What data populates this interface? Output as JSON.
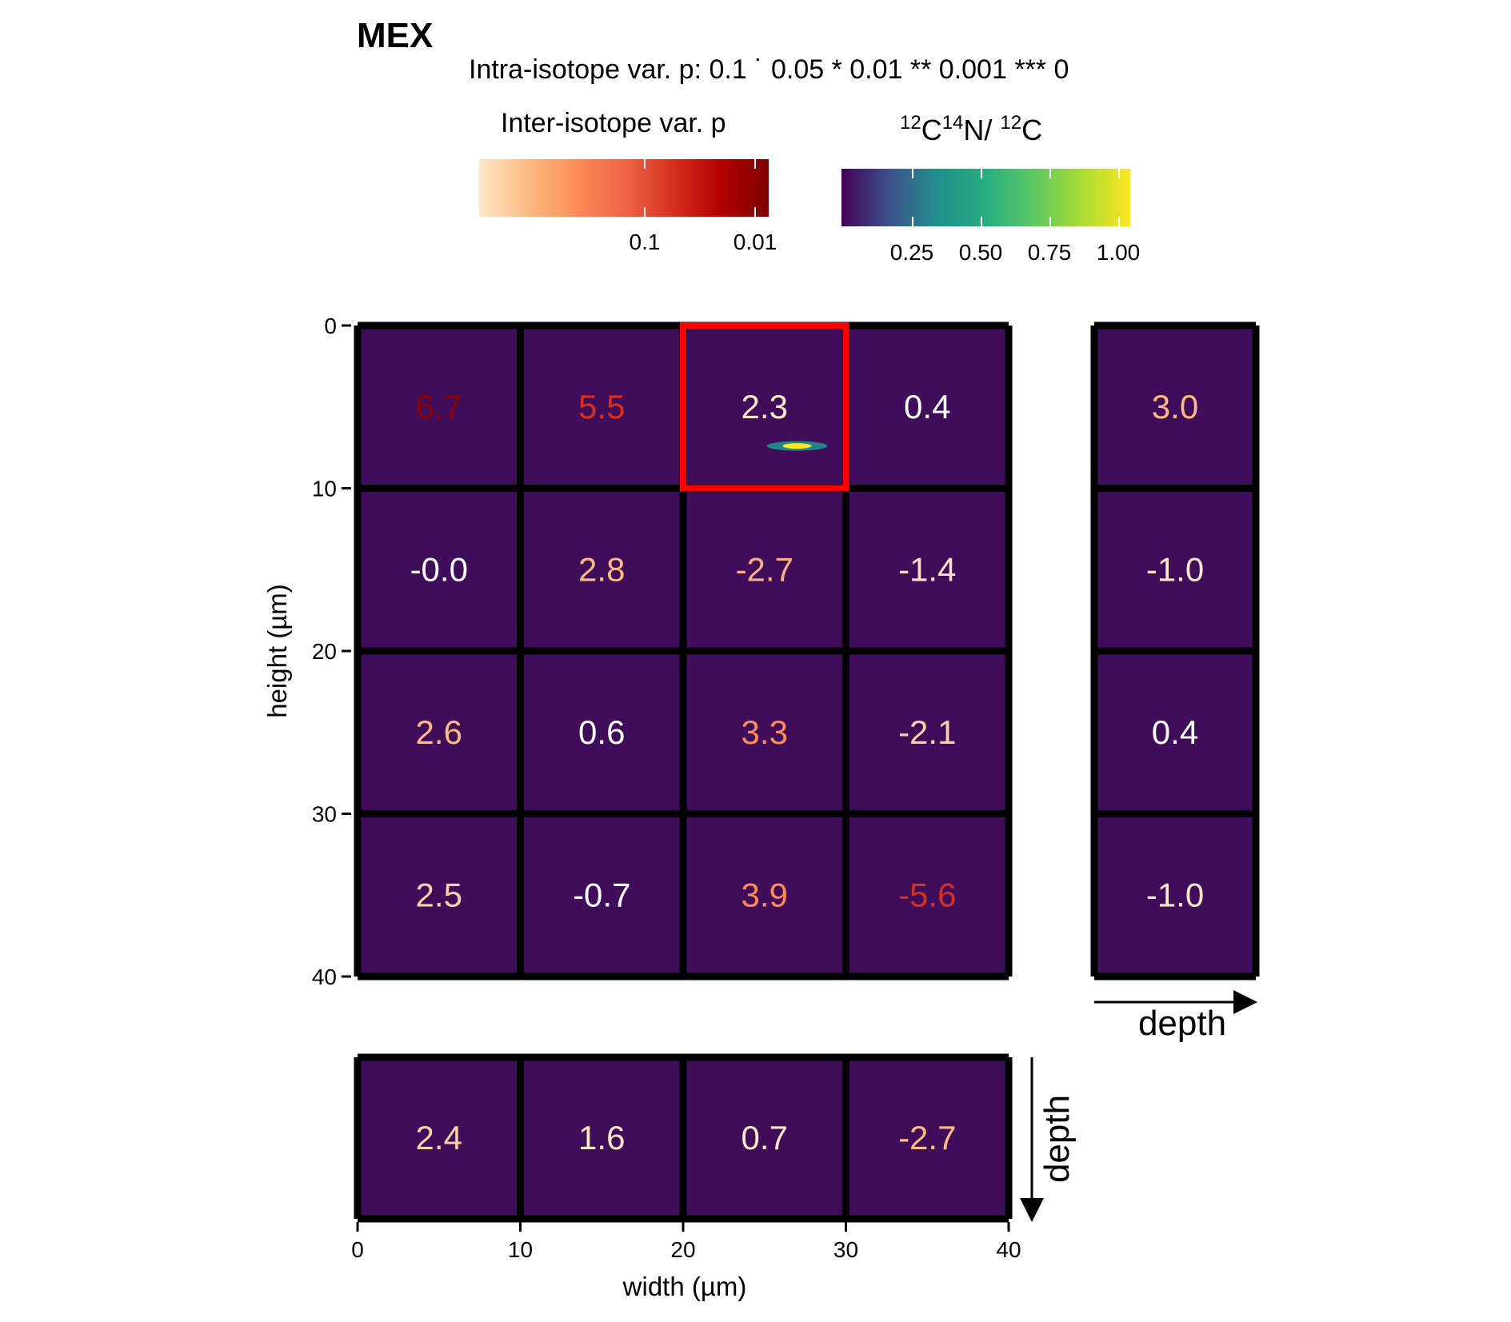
{
  "title": "MEX",
  "intra_legend": "Intra-isotope var. p: 0.1 ˙ 0.05 * 0.01 ** 0.001 *** 0",
  "inter_legend": {
    "title": "Inter-isotope var. p",
    "ticks": [
      "0.1",
      "0.01"
    ]
  },
  "ratio_legend": {
    "title_parts": [
      "12",
      "C",
      "14",
      "N/ ",
      "12",
      "C"
    ],
    "ticks": [
      "0.25",
      "0.50",
      "0.75",
      "1.00"
    ]
  },
  "colors": {
    "tile_bg": "#3f0d5a",
    "grid": "#000000",
    "highlight": "#ff0000",
    "hotspot": "#fde725"
  },
  "chart_data": {
    "type": "heatmap",
    "xlabel": "width (µm)",
    "ylabel": "height (µm)",
    "x_ticks": [
      "0",
      "10",
      "20",
      "30",
      "40"
    ],
    "y_ticks": [
      "0",
      "10",
      "20",
      "30",
      "40"
    ],
    "xlim": [
      0,
      40
    ],
    "ylim": [
      0,
      40
    ],
    "main_grid": {
      "values": [
        [
          "6.7",
          "5.5",
          "2.3",
          "0.4"
        ],
        [
          "-0.0",
          "2.8",
          "-2.7",
          "-1.4"
        ],
        [
          "2.6",
          "0.6",
          "3.3",
          "-2.1"
        ],
        [
          "2.5",
          "-0.7",
          "3.9",
          "-5.6"
        ]
      ],
      "colors": [
        [
          "#8b0000",
          "#d7301f",
          "#fee8c8",
          "#ffffff"
        ],
        [
          "#ffffff",
          "#fdbb84",
          "#fdb083",
          "#fde0c5"
        ],
        [
          "#fdbb84",
          "#ffffff",
          "#fc8d59",
          "#fdd0a8"
        ],
        [
          "#fdd0a8",
          "#ffffff",
          "#fc8d59",
          "#d7301f"
        ]
      ],
      "highlight": {
        "row": 0,
        "col": 2
      }
    },
    "side_panel": {
      "label": "depth",
      "values": [
        "3.0",
        "-1.0",
        "0.4",
        "-1.0"
      ],
      "colors": [
        "#fdbb84",
        "#fee8c8",
        "#ffffff",
        "#fee8c8"
      ]
    },
    "bottom_panel": {
      "label": "depth",
      "values": [
        "2.4",
        "1.6",
        "0.7",
        "-2.7"
      ],
      "colors": [
        "#fdd0a8",
        "#fee8c8",
        "#fee8c8",
        "#fdbb84"
      ]
    }
  }
}
